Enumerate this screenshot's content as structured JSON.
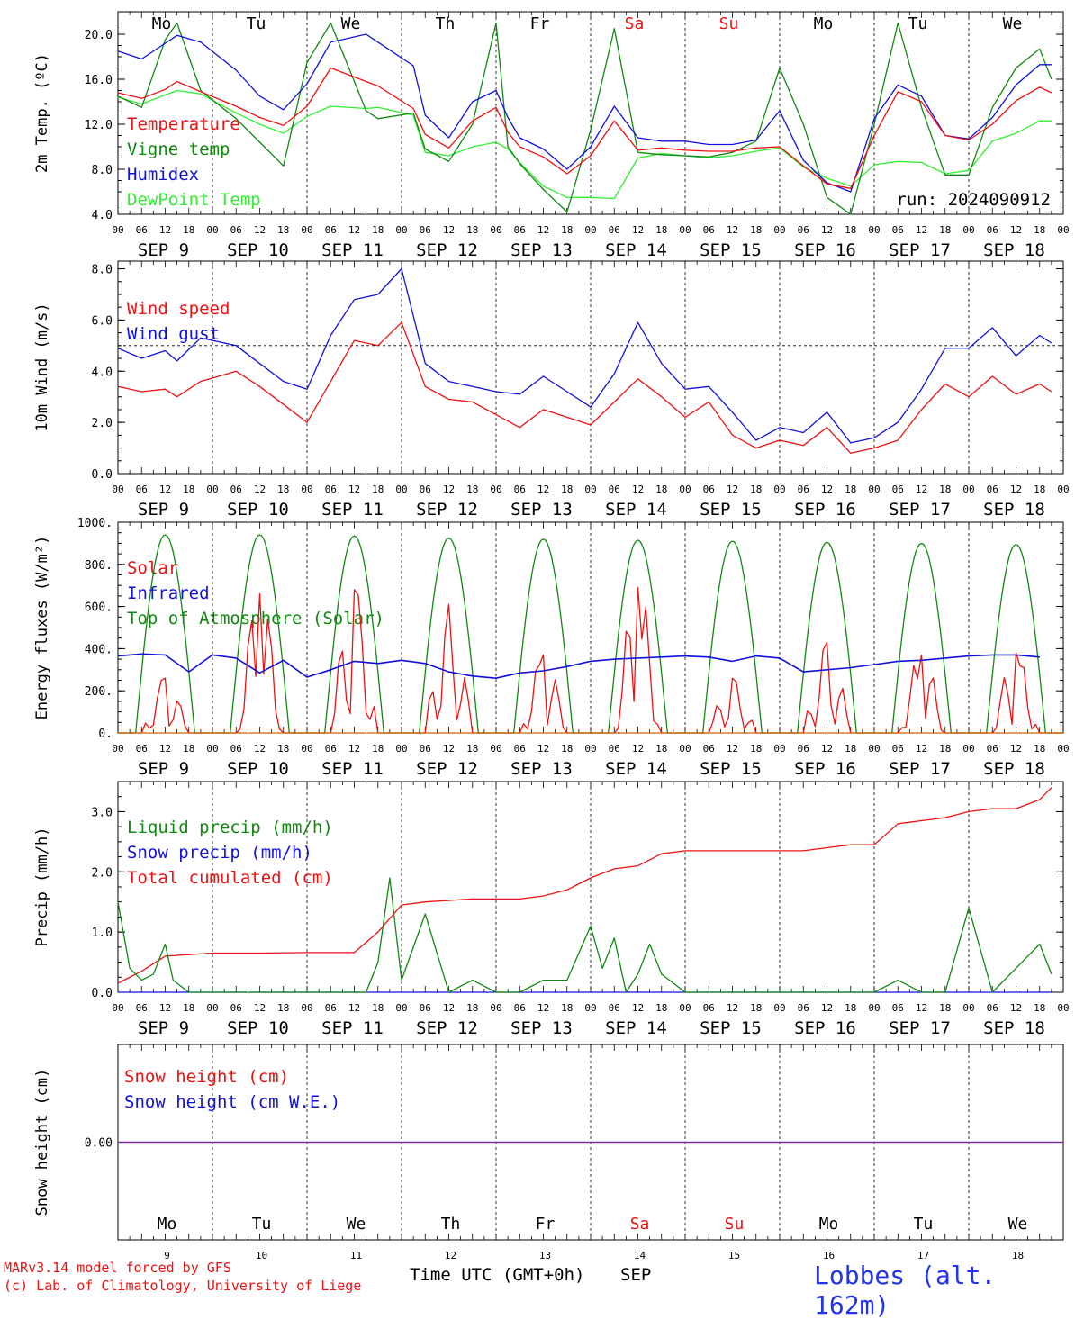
{
  "colors": {
    "red": "#ee1111",
    "green": "#118811",
    "blue": "#1111dd",
    "lightgreen": "#33ee33",
    "purple": "#7a2a9a",
    "weekend": "#ee1111"
  },
  "days": [
    "Mo",
    "Tu",
    "We",
    "Th",
    "Fr",
    "Sa",
    "Su",
    "Mo",
    "Tu",
    "We"
  ],
  "weekend_flags": [
    false,
    false,
    false,
    false,
    false,
    true,
    true,
    false,
    false,
    false
  ],
  "date_labels": [
    "SEP  9",
    "SEP 10",
    "SEP 11",
    "SEP 12",
    "SEP 13",
    "SEP 14",
    "SEP 15",
    "SEP 16",
    "SEP 17",
    "SEP 18"
  ],
  "day_numbers": [
    "9",
    "10",
    "11",
    "12",
    "13",
    "14",
    "15",
    "16",
    "17",
    "18"
  ],
  "hour_labels": [
    "00",
    "06",
    "12",
    "18"
  ],
  "hour_end_label": "00",
  "run_label": "run: 2024090912",
  "footer": {
    "model_line": "MARv3.14 model forced by GFS",
    "lab_line": "(c) Lab. of Climatology, University of Liege",
    "xlabel": "Time UTC (GMT+0h)",
    "month": "SEP",
    "station": "Lobbes (alt. 162m)"
  },
  "chart_data": [
    {
      "type": "line",
      "ylabel": "2m Temp. (ºC)",
      "ylim": [
        4,
        22
      ],
      "yticks": [
        "4.0",
        "8.0",
        "12.0",
        "16.0",
        "20.0"
      ],
      "x_unit": "hours since 00 UTC SEP 9",
      "legend": [
        "Temperature",
        "Vigne temp",
        "Humidex",
        "DewPoint Temp"
      ],
      "series": [
        {
          "name": "Temperature",
          "color": "red",
          "x": [
            0,
            6,
            12,
            15,
            21,
            30,
            36,
            42,
            48,
            54,
            63,
            66,
            75,
            78,
            84,
            90,
            96,
            99,
            102,
            108,
            114,
            120,
            126,
            132,
            138,
            144,
            150,
            156,
            162,
            168,
            174,
            180,
            186,
            192,
            198,
            204,
            210,
            216,
            222,
            228,
            234,
            237
          ],
          "y": [
            14.8,
            14.3,
            15.1,
            15.8,
            14.9,
            13.6,
            12.6,
            11.9,
            13.6,
            17.0,
            15.8,
            15.4,
            13.4,
            11.1,
            9.9,
            12.3,
            13.5,
            11.3,
            10.0,
            9.1,
            7.6,
            9.2,
            12.3,
            9.7,
            9.9,
            9.7,
            9.6,
            9.6,
            9.9,
            10.0,
            8.3,
            6.7,
            6.3,
            11.0,
            14.9,
            14.0,
            11.0,
            10.6,
            12.0,
            14.1,
            15.3,
            14.8
          ]
        },
        {
          "name": "Vigne temp",
          "color": "green",
          "x": [
            0,
            6,
            12,
            15,
            21,
            30,
            36,
            42,
            48,
            54,
            63,
            66,
            75,
            78,
            84,
            90,
            96,
            99,
            102,
            108,
            114,
            120,
            126,
            132,
            138,
            144,
            150,
            156,
            162,
            168,
            174,
            180,
            186,
            192,
            198,
            204,
            210,
            216,
            222,
            228,
            234,
            237
          ],
          "y": [
            14.5,
            13.5,
            19.5,
            21.0,
            15.0,
            12.5,
            10.4,
            8.3,
            17.5,
            21.0,
            13.2,
            12.5,
            13.0,
            9.8,
            8.7,
            12.0,
            21.0,
            10.0,
            8.5,
            6.2,
            4.2,
            11.5,
            20.5,
            9.5,
            9.3,
            9.2,
            9.1,
            9.5,
            10.5,
            17.0,
            12.0,
            5.5,
            3.9,
            12.0,
            21.0,
            13.5,
            7.5,
            7.5,
            13.5,
            17.0,
            18.7,
            16.0
          ]
        },
        {
          "name": "Humidex",
          "color": "blue",
          "x": [
            0,
            6,
            12,
            15,
            21,
            30,
            36,
            42,
            48,
            54,
            63,
            66,
            75,
            78,
            84,
            90,
            96,
            99,
            102,
            108,
            114,
            120,
            126,
            132,
            138,
            144,
            150,
            156,
            162,
            168,
            174,
            180,
            186,
            192,
            198,
            204,
            210,
            216,
            222,
            228,
            234,
            237
          ],
          "y": [
            18.5,
            17.8,
            19.2,
            19.9,
            19.3,
            16.8,
            14.5,
            13.3,
            15.6,
            19.3,
            20.0,
            19.3,
            17.2,
            12.8,
            10.8,
            14.0,
            15.0,
            12.6,
            10.8,
            9.8,
            8.0,
            10.0,
            13.6,
            10.8,
            10.5,
            10.5,
            10.2,
            10.2,
            10.6,
            13.2,
            8.8,
            6.8,
            6.0,
            12.5,
            15.5,
            14.5,
            11.0,
            10.7,
            12.6,
            15.5,
            17.3,
            17.3
          ]
        },
        {
          "name": "DewPoint Temp",
          "color": "lightgreen",
          "x": [
            0,
            6,
            12,
            15,
            21,
            30,
            36,
            42,
            48,
            54,
            63,
            66,
            75,
            78,
            84,
            90,
            96,
            99,
            102,
            108,
            114,
            120,
            126,
            132,
            138,
            144,
            150,
            156,
            162,
            168,
            174,
            180,
            186,
            192,
            198,
            204,
            210,
            216,
            222,
            228,
            234,
            237
          ],
          "y": [
            14.4,
            13.8,
            14.6,
            15.0,
            14.7,
            13.0,
            12.0,
            11.2,
            12.7,
            13.6,
            13.4,
            13.5,
            12.8,
            9.5,
            9.2,
            10.0,
            10.4,
            9.8,
            8.6,
            6.5,
            5.5,
            5.5,
            5.4,
            9.0,
            9.4,
            9.2,
            9.0,
            9.2,
            9.6,
            9.9,
            8.2,
            7.2,
            6.5,
            8.4,
            8.7,
            8.6,
            7.6,
            7.9,
            10.5,
            11.2,
            12.3,
            12.3
          ]
        }
      ]
    },
    {
      "type": "line",
      "ylabel": "10m Wind (m/s)",
      "ylim": [
        0,
        8.3
      ],
      "yticks": [
        "0.0",
        "2.0",
        "4.0",
        "6.0",
        "8.0"
      ],
      "reference_line": 5.0,
      "legend": [
        "Wind speed",
        "Wind gust"
      ],
      "series": [
        {
          "name": "Wind speed",
          "color": "red",
          "x": [
            0,
            6,
            12,
            15,
            21,
            30,
            36,
            42,
            48,
            54,
            60,
            66,
            72,
            78,
            84,
            90,
            96,
            102,
            108,
            114,
            120,
            126,
            132,
            138,
            144,
            150,
            156,
            162,
            168,
            174,
            180,
            186,
            192,
            198,
            204,
            210,
            216,
            222,
            228,
            234,
            237
          ],
          "y": [
            3.4,
            3.2,
            3.3,
            3.0,
            3.6,
            4.0,
            3.4,
            2.7,
            2.0,
            3.6,
            5.2,
            5.0,
            5.9,
            3.4,
            2.9,
            2.8,
            2.3,
            1.8,
            2.5,
            2.2,
            1.9,
            2.8,
            3.7,
            3.0,
            2.2,
            2.8,
            1.5,
            1.0,
            1.3,
            1.1,
            1.8,
            0.8,
            1.0,
            1.3,
            2.5,
            3.5,
            3.0,
            3.8,
            3.1,
            3.5,
            3.2
          ]
        },
        {
          "name": "Wind gust",
          "color": "blue",
          "x": [
            0,
            6,
            12,
            15,
            21,
            30,
            36,
            42,
            48,
            54,
            60,
            66,
            72,
            78,
            84,
            90,
            96,
            102,
            108,
            114,
            120,
            126,
            132,
            138,
            144,
            150,
            156,
            162,
            168,
            174,
            180,
            186,
            192,
            198,
            204,
            210,
            216,
            222,
            228,
            234,
            237
          ],
          "y": [
            4.9,
            4.5,
            4.8,
            4.4,
            5.3,
            5.0,
            4.3,
            3.6,
            3.3,
            5.4,
            6.8,
            7.0,
            8.0,
            4.3,
            3.6,
            3.4,
            3.2,
            3.1,
            3.8,
            3.2,
            2.6,
            3.9,
            5.9,
            4.3,
            3.3,
            3.4,
            2.4,
            1.3,
            1.8,
            1.6,
            2.4,
            1.2,
            1.4,
            2.0,
            3.3,
            4.9,
            4.9,
            5.7,
            4.6,
            5.4,
            5.1
          ]
        }
      ]
    },
    {
      "type": "line",
      "ylabel": "Energy fluxes (W/m²)",
      "ylim": [
        0,
        1000
      ],
      "yticks": [
        "0.",
        "200.",
        "400.",
        "600.",
        "800.",
        "1000."
      ],
      "legend": [
        "Solar",
        "Infrared",
        "Top of Atmosphere (Solar)"
      ],
      "toa_peaks": [
        940,
        940,
        935,
        925,
        920,
        915,
        910,
        905,
        900,
        895
      ],
      "solar_peaks": [
        260,
        660,
        680,
        610,
        370,
        690,
        260,
        430,
        370,
        380
      ],
      "solar_day_shape": [
        0,
        0,
        0.4,
        0.7,
        0.4,
        0.9,
        0.3,
        0.6,
        0.2,
        0
      ],
      "infrared": [
        365,
        375,
        370,
        290,
        370,
        355,
        285,
        345,
        265,
        300,
        340,
        330,
        345,
        330,
        290,
        270,
        260,
        285,
        295,
        315,
        340,
        350,
        355,
        360,
        365,
        360,
        340,
        365,
        355,
        290,
        300,
        310,
        325,
        340,
        345,
        355,
        365,
        370,
        370,
        360
      ]
    },
    {
      "type": "line",
      "ylabel": "Precip (mm/h)",
      "ylim": [
        0,
        3.5
      ],
      "yticks": [
        "0.0",
        "1.0",
        "2.0",
        "3.0"
      ],
      "legend": [
        "Liquid precip (mm/h)",
        "Snow precip (mm/h)",
        "Total cumulated (cm)"
      ],
      "series": [
        {
          "name": "Liquid precip (mm/h)",
          "color": "green",
          "x": [
            0,
            3,
            6,
            9,
            12,
            14,
            18,
            24,
            42,
            45,
            48,
            51,
            54,
            57,
            60,
            63,
            66,
            69,
            72,
            78,
            84,
            90,
            96,
            102,
            108,
            114,
            120,
            123,
            126,
            129,
            132,
            135,
            138,
            144,
            150,
            156,
            162,
            168,
            180,
            186,
            192,
            198,
            204,
            210,
            216,
            222,
            228,
            234,
            237
          ],
          "y": [
            1.5,
            0.4,
            0.2,
            0.3,
            0.8,
            0.2,
            0,
            0,
            0,
            0,
            0,
            0,
            0,
            0,
            0,
            0,
            0.5,
            1.9,
            0.2,
            1.3,
            0,
            0.2,
            0,
            0,
            0.2,
            0.2,
            1.1,
            0.4,
            0.9,
            0,
            0.3,
            0.8,
            0.3,
            0,
            0,
            0,
            0,
            0,
            0,
            0,
            0,
            0.2,
            0,
            0,
            1.4,
            0,
            0.4,
            0.8,
            0.3
          ]
        },
        {
          "name": "Snow precip (mm/h)",
          "color": "blue",
          "x": [
            0,
            237
          ],
          "y": [
            0,
            0
          ]
        },
        {
          "name": "Total cumulated (cm)",
          "color": "red",
          "x": [
            0,
            6,
            12,
            24,
            36,
            48,
            60,
            66,
            72,
            78,
            90,
            102,
            108,
            114,
            120,
            126,
            132,
            138,
            144,
            150,
            156,
            162,
            168,
            174,
            180,
            186,
            192,
            198,
            204,
            210,
            216,
            222,
            228,
            234,
            237
          ],
          "y": [
            0.15,
            0.35,
            0.6,
            0.65,
            0.65,
            0.66,
            0.66,
            1.0,
            1.45,
            1.5,
            1.55,
            1.55,
            1.6,
            1.7,
            1.9,
            2.05,
            2.1,
            2.3,
            2.35,
            2.35,
            2.35,
            2.35,
            2.35,
            2.35,
            2.4,
            2.45,
            2.45,
            2.8,
            2.85,
            2.9,
            3.0,
            3.05,
            3.05,
            3.2,
            3.4
          ]
        }
      ]
    },
    {
      "type": "line",
      "ylabel": "Snow height (cm)",
      "ylim": [
        -1,
        1
      ],
      "yticks": [
        "0.00"
      ],
      "legend": [
        "Snow height (cm)",
        "Snow height (cm W.E.)"
      ],
      "series": [
        {
          "name": "Snow height (cm)",
          "color": "purple",
          "x": [
            0,
            240
          ],
          "y": [
            0,
            0
          ]
        }
      ]
    }
  ]
}
